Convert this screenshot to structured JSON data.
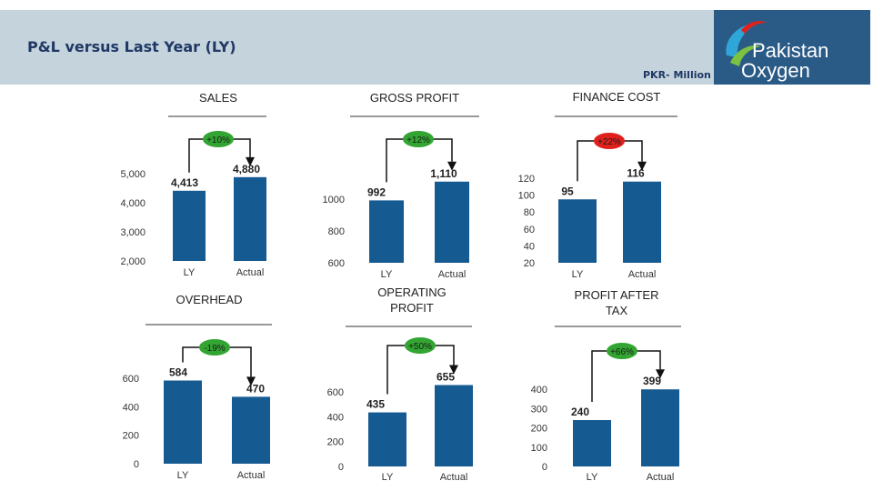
{
  "header": {
    "title": "P&L versus Last Year (LY)",
    "units": "PKR- Million"
  },
  "logo": {
    "line1": "Pakistan",
    "line2": "Oxygen"
  },
  "colors": {
    "bar": "#165a92",
    "badge_green": "#33a532",
    "badge_red": "#e0201c",
    "header_band": "#c5d3dd",
    "logo_bg": "#2a5a86",
    "title_text": "#1f3864"
  },
  "chart_data": [
    {
      "type": "bar",
      "title": "SALES",
      "categories": [
        "LY",
        "Actual"
      ],
      "values": [
        4413,
        4880
      ],
      "value_labels": [
        "4,413",
        "4,880"
      ],
      "yticks": [
        5000,
        4000,
        3000,
        2000
      ],
      "ytick_labels": [
        "5,000",
        "4,000",
        "3,000",
        "2,000"
      ],
      "ylim": [
        2000,
        5000
      ],
      "change": "+10%",
      "change_color": "green"
    },
    {
      "type": "bar",
      "title": "GROSS PROFIT",
      "categories": [
        "LY",
        "Actual"
      ],
      "values": [
        992,
        1110
      ],
      "value_labels": [
        "992",
        "1,110"
      ],
      "yticks": [
        1000,
        800,
        600
      ],
      "ytick_labels": [
        "1000",
        "800",
        "600"
      ],
      "ylim": [
        600,
        1000
      ],
      "change": "+12%",
      "change_color": "green"
    },
    {
      "type": "bar",
      "title": "FINANCE COST",
      "categories": [
        "LY",
        "Actual"
      ],
      "values": [
        95,
        116
      ],
      "value_labels": [
        "95",
        "116"
      ],
      "yticks": [
        120,
        100,
        80,
        60,
        40,
        20
      ],
      "ytick_labels": [
        "120",
        "100",
        "80",
        "60",
        "40",
        "20"
      ],
      "ylim": [
        20,
        120
      ],
      "change": "+22%",
      "change_color": "red"
    },
    {
      "type": "bar",
      "title": "OVERHEAD",
      "categories": [
        "LY",
        "Actual"
      ],
      "values": [
        584,
        470
      ],
      "value_labels": [
        "584",
        "470"
      ],
      "yticks": [
        600,
        400,
        200,
        0
      ],
      "ytick_labels": [
        "600",
        "400",
        "200",
        "0"
      ],
      "ylim": [
        0,
        600
      ],
      "change": "-19%",
      "change_color": "green"
    },
    {
      "type": "bar",
      "title": "OPERATING PROFIT",
      "categories": [
        "LY",
        "Actual"
      ],
      "values": [
        435,
        655
      ],
      "value_labels": [
        "435",
        "655"
      ],
      "yticks": [
        600,
        400,
        200,
        0
      ],
      "ytick_labels": [
        "600",
        "400",
        "200",
        "0"
      ],
      "ylim": [
        0,
        600
      ],
      "change": "+50%",
      "change_color": "green"
    },
    {
      "type": "bar",
      "title": "PROFIT AFTER TAX",
      "categories": [
        "LY",
        "Actual"
      ],
      "values": [
        240,
        399
      ],
      "value_labels": [
        "240",
        "399"
      ],
      "yticks": [
        400,
        300,
        200,
        100,
        0
      ],
      "ytick_labels": [
        "400",
        "300",
        "200",
        "100",
        "0"
      ],
      "ylim": [
        0,
        400
      ],
      "change": "+66%",
      "change_color": "green"
    }
  ]
}
